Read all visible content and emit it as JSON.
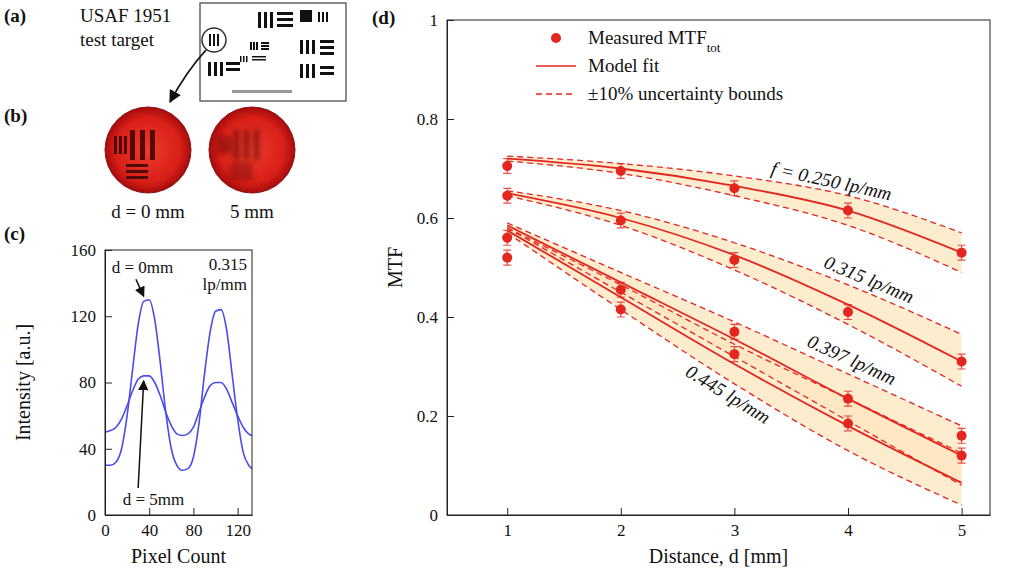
{
  "figure": {
    "panel_a": {
      "label": "(a)",
      "caption": "USAF 1951 test target"
    },
    "panel_b": {
      "label": "(b)",
      "images": [
        {
          "caption": "d = 0 mm"
        },
        {
          "caption": "5 mm"
        }
      ]
    }
  },
  "chart_data": [
    {
      "type": "line",
      "label": "(c)",
      "x_label": "Pixel Count",
      "y_label": "Intensity [a.u.]",
      "xlim": [
        0,
        133
      ],
      "xticks": [
        0,
        40,
        80,
        120
      ],
      "ylim": [
        0,
        160
      ],
      "yticks": [
        0,
        40,
        80,
        120,
        160
      ],
      "x": [
        0,
        5,
        10,
        15,
        20,
        25,
        30,
        35,
        40,
        45,
        50,
        55,
        60,
        65,
        70,
        75,
        80,
        85,
        90,
        95,
        100,
        105,
        110,
        115,
        120,
        125,
        130,
        133
      ],
      "series": [
        {
          "name": "d = 0mm",
          "color": "#4b4bea",
          "values": [
            30,
            30,
            32,
            40,
            60,
            88,
            115,
            129,
            130,
            118,
            92,
            62,
            40,
            30,
            27,
            28,
            35,
            55,
            85,
            110,
            123,
            124,
            112,
            85,
            58,
            38,
            30,
            28
          ]
        },
        {
          "name": "d = 5mm",
          "color": "#4b4bea",
          "values": [
            50,
            51,
            53,
            58,
            66,
            75,
            82,
            84,
            84,
            80,
            72,
            62,
            54,
            49,
            48,
            49,
            53,
            62,
            71,
            78,
            80,
            80,
            76,
            68,
            60,
            53,
            49,
            48
          ]
        }
      ],
      "annotations": [
        "0.315 lp/mm"
      ]
    },
    {
      "type": "line",
      "label": "(d)",
      "x_label": "Distance, d [mm]",
      "y_label": "MTF",
      "xlim": [
        0.47,
        5.25
      ],
      "xticks": [
        1,
        2,
        3,
        4,
        5
      ],
      "ylim": [
        0,
        1
      ],
      "yticks": [
        0,
        0.2,
        0.4,
        0.6,
        0.8,
        1
      ],
      "color": "#e3261f",
      "legend": "upper right",
      "legend_entries": [
        {
          "text": "Measured MTF",
          "subscript": "tot",
          "marker": "circle"
        },
        {
          "text": "Model fit",
          "line_style": "solid"
        },
        {
          "text": "±10% uncertainty bounds",
          "line_style": "dashed"
        }
      ],
      "x": [
        1,
        2,
        3,
        4,
        5
      ],
      "series": [
        {
          "name": "f = 0.250 lp/mm",
          "measured": [
            0.705,
            0.695,
            0.66,
            0.615,
            0.53
          ],
          "error": [
            0.015,
            0.015,
            0.015,
            0.015,
            0.015
          ],
          "fit": [
            0.72,
            0.7,
            0.665,
            0.615,
            0.53
          ],
          "upper": [
            0.725,
            0.71,
            0.685,
            0.645,
            0.57
          ],
          "lower": [
            0.715,
            0.69,
            0.645,
            0.585,
            0.49
          ]
        },
        {
          "name": "0.315 lp/mm",
          "measured": [
            0.645,
            0.595,
            0.515,
            0.41,
            0.31
          ],
          "error": [
            0.015,
            0.015,
            0.015,
            0.015,
            0.015
          ],
          "fit": [
            0.65,
            0.6,
            0.525,
            0.425,
            0.31
          ],
          "upper": [
            0.655,
            0.615,
            0.55,
            0.465,
            0.365
          ],
          "lower": [
            0.645,
            0.585,
            0.495,
            0.385,
            0.26
          ]
        },
        {
          "name": "0.397 lp/mm",
          "measured": [
            0.56,
            0.455,
            0.37,
            0.235,
            0.16
          ],
          "error": [
            0.015,
            0.015,
            0.015,
            0.015,
            0.015
          ],
          "fit": [
            0.585,
            0.47,
            0.355,
            0.235,
            0.12
          ],
          "upper": [
            0.59,
            0.49,
            0.39,
            0.285,
            0.18
          ],
          "lower": [
            0.58,
            0.45,
            0.32,
            0.19,
            0.06
          ]
        },
        {
          "name": "0.445 lp/mm",
          "measured": [
            0.52,
            0.415,
            0.325,
            0.185,
            0.12
          ],
          "error": [
            0.015,
            0.015,
            0.015,
            0.015,
            0.015
          ],
          "fit": [
            0.575,
            0.44,
            0.305,
            0.18,
            0.065
          ],
          "upper": [
            0.58,
            0.465,
            0.345,
            0.235,
            0.125
          ],
          "lower": [
            0.57,
            0.415,
            0.265,
            0.13,
            0.02
          ]
        }
      ]
    }
  ]
}
